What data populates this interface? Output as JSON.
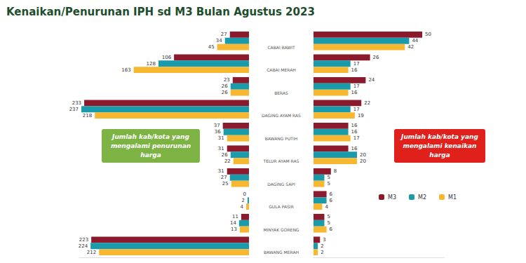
{
  "chart_data": [
    {
      "type": "bar",
      "orientation": "horizontal",
      "title": "Kenaikan/Penurunan IPH sd M3 Bulan Agustus 2023",
      "categories": [
        "CABAI RAWIT",
        "CABAI MERAH",
        "BERAS",
        "DAGING AYAM RAS",
        "BAWANG PUTIH",
        "TELUR AYAM RAS",
        "DAGING SAPI",
        "GULA PASIR",
        "MINYAK GORENG",
        "BAWANG MERAH"
      ],
      "series": [
        {
          "name": "M3",
          "color": "#8b1a2c",
          "values": [
            27,
            106,
            23,
            233,
            37,
            31,
            31,
            0,
            11,
            223
          ]
        },
        {
          "name": "M2",
          "color": "#1a9bab",
          "values": [
            34,
            128,
            26,
            237,
            36,
            26,
            27,
            2,
            14,
            224
          ]
        },
        {
          "name": "M1",
          "color": "#f7b731",
          "values": [
            45,
            163,
            26,
            218,
            31,
            22,
            25,
            4,
            13,
            212
          ]
        }
      ],
      "xlim": [
        0,
        240
      ],
      "tick_labels": false,
      "data_labels": true,
      "annotation": "Jumlah kab/kota yang\nmengalami penurunan\nharga"
    },
    {
      "type": "bar",
      "orientation": "horizontal",
      "categories": [
        "CABAI RAWIT",
        "CABAI MERAH",
        "BERAS",
        "DAGING AYAM RAS",
        "BAWANG PUTIH",
        "TELUR AYAM RAS",
        "DAGING SAPI",
        "GULA PASIR",
        "MINYAK GORENG",
        "BAWANG MERAH"
      ],
      "series": [
        {
          "name": "M3",
          "color": "#8b1a2c",
          "values": [
            50,
            26,
            24,
            22,
            16,
            16,
            8,
            6,
            5,
            3
          ]
        },
        {
          "name": "M2",
          "color": "#1a9bab",
          "values": [
            44,
            17,
            17,
            17,
            16,
            20,
            5,
            6,
            5,
            2
          ]
        },
        {
          "name": "M1",
          "color": "#f7b731",
          "values": [
            42,
            16,
            16,
            19,
            17,
            20,
            5,
            4,
            6,
            2
          ]
        }
      ],
      "xlim": [
        0,
        60
      ],
      "tick_labels": false,
      "data_labels": true,
      "legend": "lower right",
      "annotation": "Jumlah kab/kota yang\nmengalami kenaikan\nharga"
    }
  ]
}
